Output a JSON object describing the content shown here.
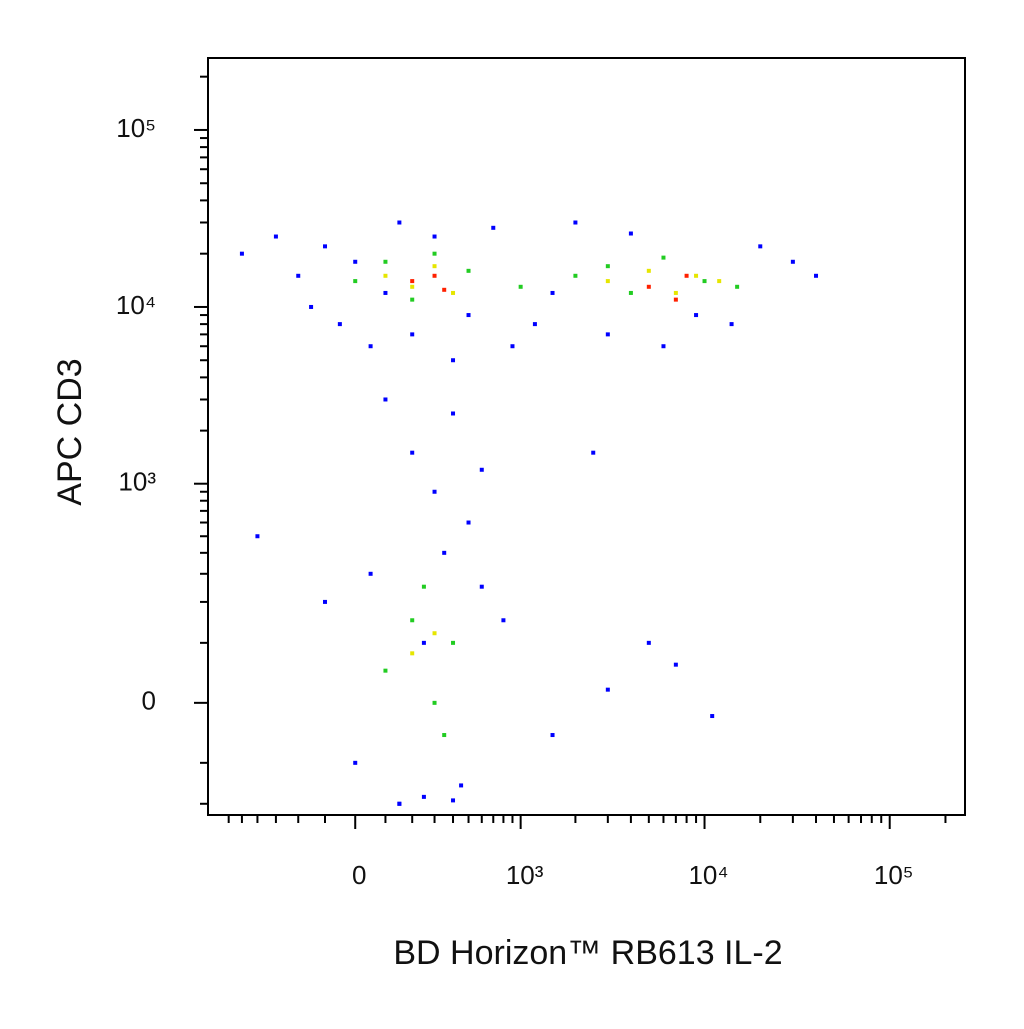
{
  "chart_data": {
    "type": "scatter",
    "xlabel": "BD Horizon™ RB613 IL-2",
    "ylabel": "APC  CD3",
    "xscale": "asinh",
    "x_linear_width": 260,
    "yscale": "asinh",
    "y_linear_width": 116,
    "xlim": [
      -790,
      255000
    ],
    "ylim": [
      -236,
      255000
    ],
    "xticks": [
      0,
      {
        "value": 1000,
        "label": "10³"
      },
      {
        "value": 10000,
        "label": "10⁴"
      },
      {
        "value": 100000,
        "label": "10⁵"
      }
    ],
    "yticks": [
      0,
      {
        "value": 1000,
        "label": "10³"
      },
      {
        "value": 10000,
        "label": "10⁴"
      },
      {
        "value": 100000,
        "label": "10⁵"
      }
    ],
    "xminor_ticks": [
      -600,
      -500,
      -400,
      -300,
      -200,
      -100,
      100,
      200,
      300,
      400,
      500,
      600,
      700,
      800,
      900,
      2000,
      3000,
      4000,
      5000,
      6000,
      7000,
      8000,
      9000,
      20000,
      30000,
      40000,
      50000,
      60000,
      70000,
      80000,
      90000,
      200000
    ],
    "yminor_ticks": [
      -200,
      -100,
      100,
      200,
      300,
      400,
      500,
      600,
      700,
      800,
      900,
      2000,
      3000,
      4000,
      5000,
      6000,
      7000,
      8000,
      9000,
      20000,
      30000,
      40000,
      50000,
      60000,
      70000,
      80000,
      90000,
      200000
    ],
    "series": [
      {
        "color": "#0000ff",
        "x": [
          -500,
          -300,
          -200,
          -150,
          -100,
          -50,
          0,
          50,
          100,
          150,
          200,
          300,
          400,
          500,
          700,
          900,
          1200,
          1500,
          2000,
          3000,
          4000,
          6000,
          9000,
          14000,
          20000,
          30000,
          40000,
          100,
          200,
          300,
          400,
          600,
          500,
          -100,
          0,
          50,
          150,
          250,
          350,
          450,
          600,
          800,
          1500,
          3000,
          5000,
          7000,
          11000,
          -400,
          2500,
          150,
          250,
          400
        ],
        "y": [
          20000,
          25000,
          15000,
          10000,
          22000,
          8000,
          18000,
          6000,
          12000,
          30000,
          7000,
          25000,
          5000,
          9000,
          28000,
          6000,
          8000,
          12000,
          30000,
          7000,
          26000,
          6000,
          9000,
          8000,
          22000,
          18000,
          15000,
          3000,
          1500,
          900,
          2500,
          1200,
          600,
          200,
          -100,
          300,
          -200,
          100,
          400,
          -150,
          250,
          150,
          -50,
          20,
          100,
          60,
          -20,
          500,
          1500,
          -200,
          -180,
          -190
        ]
      },
      {
        "color": "#22cc22",
        "x": [
          0,
          100,
          200,
          300,
          500,
          1000,
          2000,
          3000,
          4000,
          6000,
          10000,
          15000,
          100,
          200,
          300,
          400,
          250,
          350
        ],
        "y": [
          14000,
          18000,
          11000,
          20000,
          16000,
          13000,
          15000,
          17000,
          12000,
          19000,
          14000,
          13000,
          50,
          150,
          0,
          100,
          250,
          -50
        ]
      },
      {
        "color": "#e6e600",
        "x": [
          100,
          200,
          300,
          400,
          3000,
          5000,
          7000,
          9000,
          12000,
          200,
          300
        ],
        "y": [
          15000,
          13000,
          17000,
          12000,
          14000,
          16000,
          12000,
          15000,
          14000,
          80,
          120
        ]
      },
      {
        "color": "#ff2000",
        "x": [
          200,
          300,
          350,
          5000,
          7000,
          8000
        ],
        "y": [
          14000,
          15000,
          12500,
          13000,
          11000,
          15000
        ]
      }
    ]
  }
}
